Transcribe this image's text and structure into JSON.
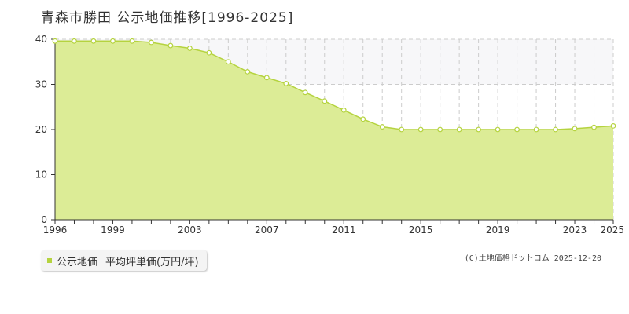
{
  "title": "青森市勝田  公示地価推移[1996-2025]",
  "legend": {
    "series_label": "公示地価",
    "unit_label": "平均坪単価(万円/坪)"
  },
  "copyright": "(C)土地価格ドットコム 2025-12-20",
  "colors": {
    "area_fill": "#dcec96",
    "line": "#b5d33f",
    "point_fill": "#ffffff",
    "grid": "#cccccc",
    "upper_band": "#f7f7f9"
  },
  "chart_data": {
    "type": "area",
    "title": "青森市勝田  公示地価推移[1996-2025]",
    "xlabel": "",
    "ylabel": "",
    "x": [
      1996,
      1997,
      1998,
      1999,
      2000,
      2001,
      2002,
      2003,
      2004,
      2005,
      2006,
      2007,
      2008,
      2009,
      2010,
      2011,
      2012,
      2013,
      2014,
      2015,
      2016,
      2017,
      2018,
      2019,
      2020,
      2021,
      2022,
      2023,
      2024,
      2025
    ],
    "series": [
      {
        "name": "公示地価",
        "values": [
          39.6,
          39.6,
          39.6,
          39.6,
          39.6,
          39.3,
          38.6,
          38.0,
          37.0,
          35.0,
          32.8,
          31.5,
          30.2,
          28.2,
          26.3,
          24.3,
          22.3,
          20.6,
          20.0,
          20.0,
          20.0,
          20.0,
          20.0,
          20.0,
          20.0,
          20.0,
          20.0,
          20.2,
          20.5,
          20.8
        ]
      }
    ],
    "xlim": [
      1996,
      2025
    ],
    "ylim": [
      0,
      40
    ],
    "yticks": [
      0,
      10,
      20,
      30,
      40
    ],
    "xtick_labels": [
      "1996",
      "1999",
      "2003",
      "2007",
      "2011",
      "2015",
      "2019",
      "2023",
      "2025"
    ],
    "grid": true,
    "legend_position": "bottom-left"
  }
}
